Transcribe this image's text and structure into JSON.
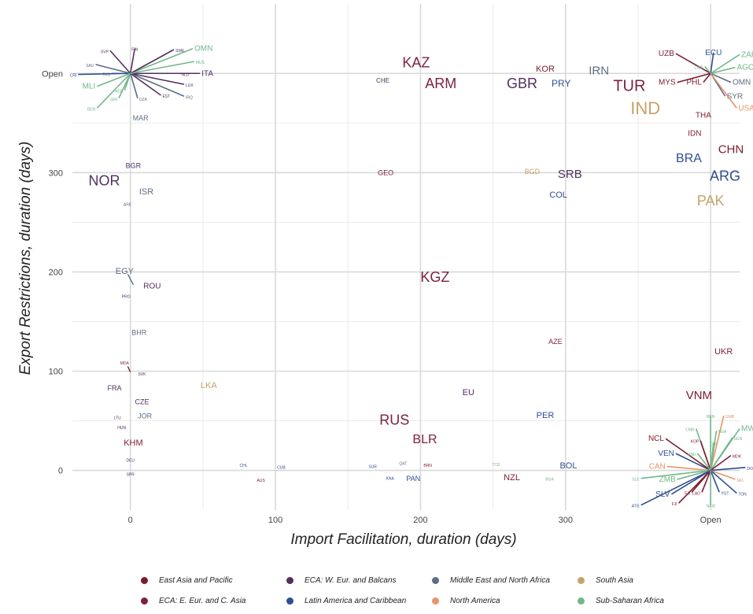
{
  "chart_data": {
    "type": "scatter",
    "xlabel": "Import Facilitation, duration (days)",
    "ylabel": "Export Restrictions, duration (days)",
    "x_ticks": [
      "0",
      "100",
      "200",
      "300",
      "Open"
    ],
    "y_ticks": [
      "0",
      "100",
      "200",
      "300",
      "Open"
    ],
    "xlim": [
      -40,
      420
    ],
    "ylim": [
      -40,
      470
    ],
    "open_value": 400,
    "colors": {
      "EAP": "#7b1c2c",
      "EEC": "#7e2141",
      "WEB": "#52305e",
      "LAC": "#2f4f8f",
      "MNA": "#5e6e85",
      "NAM": "#e5956a",
      "SAS": "#c6a36a",
      "SSA": "#72b88a"
    },
    "legend": [
      {
        "key": "EAP",
        "label": "East Asia and Pacific"
      },
      {
        "key": "WEB",
        "label": "ECA: W. Eur. and Balcans"
      },
      {
        "key": "MNA",
        "label": "Middle East and North Africa"
      },
      {
        "key": "SAS",
        "label": "South Asia"
      },
      {
        "key": "EEC",
        "label": "ECA: E. Eur. and C. Asia"
      },
      {
        "key": "LAC",
        "label": "Latin America and Caribbean"
      },
      {
        "key": "NAM",
        "label": "North America"
      },
      {
        "key": "SSA",
        "label": "Sub-Saharan Africa"
      }
    ],
    "points": [
      {
        "label": "KAZ",
        "x": 197,
        "y": 411,
        "region": "EEC",
        "size": 18
      },
      {
        "label": "ARM",
        "x": 214,
        "y": 390,
        "region": "EEC",
        "size": 18
      },
      {
        "label": "GBR",
        "x": 270,
        "y": 390,
        "region": "WEB",
        "size": 18
      },
      {
        "label": "KOR",
        "x": 286,
        "y": 405,
        "region": "EAP",
        "size": 11
      },
      {
        "label": "IRN",
        "x": 323,
        "y": 403,
        "region": "MNA",
        "size": 15
      },
      {
        "label": "PRY",
        "x": 297,
        "y": 390,
        "region": "LAC",
        "size": 12
      },
      {
        "label": "CHE",
        "x": 174,
        "y": 393,
        "region": "WEB",
        "size": 8
      },
      {
        "label": "MAR",
        "x": 7,
        "y": 355,
        "region": "MNA",
        "size": 9
      },
      {
        "label": "BGR",
        "x": 2,
        "y": 307,
        "region": "WEB",
        "size": 9
      },
      {
        "label": "NOR",
        "x": -18,
        "y": 292,
        "region": "WEB",
        "size": 18
      },
      {
        "label": "ISR",
        "x": 11,
        "y": 281,
        "region": "MNA",
        "size": 11
      },
      {
        "label": "GEO",
        "x": 176,
        "y": 300,
        "region": "EEC",
        "size": 9
      },
      {
        "label": "BGD",
        "x": 277,
        "y": 301,
        "region": "SAS",
        "size": 9
      },
      {
        "label": "SRB",
        "x": 303,
        "y": 299,
        "region": "WEB",
        "size": 15
      },
      {
        "label": "COL",
        "x": 295,
        "y": 278,
        "region": "LAC",
        "size": 11
      },
      {
        "label": "KGZ",
        "x": 210,
        "y": 195,
        "region": "EEC",
        "size": 18
      },
      {
        "label": "EGY",
        "x": -4,
        "y": 201,
        "region": "MNA",
        "size": 11
      },
      {
        "label": "ROU",
        "x": 15,
        "y": 186,
        "region": "WEB",
        "size": 10
      },
      {
        "label": "ARE",
        "x": -2,
        "y": 268,
        "region": "MNA",
        "size": 5
      },
      {
        "label": "PRO",
        "x": -3,
        "y": 175,
        "region": "WEB",
        "size": 5
      },
      {
        "label": "BHR",
        "x": 6,
        "y": 139,
        "region": "MNA",
        "size": 9
      },
      {
        "label": "AZE",
        "x": 293,
        "y": 130,
        "region": "EEC",
        "size": 9
      },
      {
        "label": "UKR",
        "x": 409,
        "y": 120,
        "region": "EEC",
        "size": 11
      },
      {
        "label": "MDA",
        "x": -4,
        "y": 108,
        "region": "EEC",
        "size": 5
      },
      {
        "label": "SVK",
        "x": 8,
        "y": 97,
        "region": "WEB",
        "size": 5
      },
      {
        "label": "LKA",
        "x": 54,
        "y": 86,
        "region": "SAS",
        "size": 11
      },
      {
        "label": "FRA",
        "x": -11,
        "y": 83,
        "region": "WEB",
        "size": 9
      },
      {
        "label": "EU",
        "x": 233,
        "y": 79,
        "region": "WEB",
        "size": 11
      },
      {
        "label": "CZE",
        "x": 8,
        "y": 69,
        "region": "WEB",
        "size": 9
      },
      {
        "label": "VNM",
        "x": 392,
        "y": 76,
        "region": "EAP",
        "size": 15
      },
      {
        "label": "LTU",
        "x": -9,
        "y": 53,
        "region": "WEB",
        "size": 5
      },
      {
        "label": "JOR",
        "x": 10,
        "y": 55,
        "region": "MNA",
        "size": 9
      },
      {
        "label": "PER",
        "x": 286,
        "y": 56,
        "region": "LAC",
        "size": 11
      },
      {
        "label": "RUS",
        "x": 182,
        "y": 51,
        "region": "EEC",
        "size": 18
      },
      {
        "label": "HUN",
        "x": -6,
        "y": 43,
        "region": "WEB",
        "size": 5
      },
      {
        "label": "BLR",
        "x": 203,
        "y": 32,
        "region": "EEC",
        "size": 16
      },
      {
        "label": "KHM",
        "x": 2,
        "y": 28,
        "region": "EAP",
        "size": 11
      },
      {
        "label": "DEU",
        "x": 0,
        "y": 10,
        "region": "WEB",
        "size": 5
      },
      {
        "label": "CHL",
        "x": 78,
        "y": 5,
        "region": "LAC",
        "size": 5
      },
      {
        "label": "CUB",
        "x": 104,
        "y": 3,
        "region": "LAC",
        "size": 5
      },
      {
        "label": "SUR",
        "x": 167,
        "y": 4,
        "region": "LAC",
        "size": 5
      },
      {
        "label": "QAT",
        "x": 188,
        "y": 7,
        "region": "MNA",
        "size": 5
      },
      {
        "label": "BRN",
        "x": 205,
        "y": 5,
        "region": "EAP",
        "size": 5
      },
      {
        "label": "TCD",
        "x": 252,
        "y": 6,
        "region": "SSA",
        "size": 5
      },
      {
        "label": "BOL",
        "x": 302,
        "y": 5,
        "region": "LAC",
        "size": 11
      },
      {
        "label": "SPR",
        "x": 0,
        "y": -4,
        "region": "WEB",
        "size": 5
      },
      {
        "label": "AUS",
        "x": 90,
        "y": -10,
        "region": "EAP",
        "size": 5
      },
      {
        "label": "KNA",
        "x": 179,
        "y": -8,
        "region": "LAC",
        "size": 5
      },
      {
        "label": "PAN",
        "x": 195,
        "y": -8,
        "region": "LAC",
        "size": 9
      },
      {
        "label": "NZL",
        "x": 263,
        "y": -7,
        "region": "EAP",
        "size": 11
      },
      {
        "label": "BGA",
        "x": 289,
        "y": -9,
        "region": "SSA",
        "size": 5
      },
      {
        "label": "TUR",
        "x": 344,
        "y": 388,
        "region": "EEC",
        "size": 20
      },
      {
        "label": "IND",
        "x": 355,
        "y": 365,
        "region": "SAS",
        "size": 22
      },
      {
        "label": "THA",
        "x": 395,
        "y": 358,
        "region": "EAP",
        "size": 10
      },
      {
        "label": "IDN",
        "x": 389,
        "y": 340,
        "region": "EAP",
        "size": 10
      },
      {
        "label": "BRA",
        "x": 385,
        "y": 315,
        "region": "LAC",
        "size": 16
      },
      {
        "label": "CHN",
        "x": 414,
        "y": 324,
        "region": "EAP",
        "size": 15
      },
      {
        "label": "ARG",
        "x": 410,
        "y": 297,
        "region": "LAC",
        "size": 18
      },
      {
        "label": "PAK",
        "x": 400,
        "y": 272,
        "region": "SAS",
        "size": 18
      }
    ],
    "open_clusters": [
      {
        "center": [
          0,
          400
        ],
        "spokes": [
          {
            "label": "ITA",
            "x": 48,
            "y": 400,
            "region": "WEB"
          },
          {
            "label": "OMN",
            "x": 43,
            "y": 425,
            "region": "SSA"
          },
          {
            "label": "SWE",
            "x": 30,
            "y": 424,
            "region": "WEB"
          },
          {
            "label": "FIN",
            "x": 3,
            "y": 425,
            "region": "WEB"
          },
          {
            "label": "SVP",
            "x": -14,
            "y": 423,
            "region": "WEB"
          },
          {
            "label": "SAU",
            "x": -24,
            "y": 409,
            "region": "MNA"
          },
          {
            "label": "TKS",
            "x": -13,
            "y": 400,
            "region": "MNA"
          },
          {
            "label": "CRI",
            "x": -36,
            "y": 399,
            "region": "LAC"
          },
          {
            "label": "MLI",
            "x": -23,
            "y": 387,
            "region": "SSA"
          },
          {
            "label": "NER",
            "x": -4,
            "y": 383,
            "region": "SSA"
          },
          {
            "label": "GIN",
            "x": -8,
            "y": 375,
            "region": "SSA"
          },
          {
            "label": "BEN",
            "x": -23,
            "y": 365,
            "region": "SSA"
          },
          {
            "label": "DZA",
            "x": 5,
            "y": 375,
            "region": "MNA"
          },
          {
            "label": "EST",
            "x": 21,
            "y": 378,
            "region": "WEB"
          },
          {
            "label": "IRQ",
            "x": 37,
            "y": 377,
            "region": "MNA"
          },
          {
            "label": "LUX",
            "x": 37,
            "y": 389,
            "region": "WEB"
          },
          {
            "label": "NLD",
            "x": 34,
            "y": 400,
            "region": "WEB"
          },
          {
            "label": "MUS",
            "x": 44,
            "y": 412,
            "region": "SSA"
          }
        ]
      },
      {
        "center": [
          400,
          400
        ],
        "spokes": [
          {
            "label": "UZB",
            "x": 376,
            "y": 420,
            "region": "EEC"
          },
          {
            "label": "ECU",
            "x": 402,
            "y": 421,
            "region": "LAC"
          },
          {
            "label": "ZAF",
            "x": 420,
            "y": 419,
            "region": "SSA"
          },
          {
            "label": "ZWE",
            "x": 396,
            "y": 407,
            "region": "SSA"
          },
          {
            "label": "AGO",
            "x": 417,
            "y": 406,
            "region": "SSA"
          },
          {
            "label": "MYS",
            "x": 377,
            "y": 391,
            "region": "EAP"
          },
          {
            "label": "PHL",
            "x": 395,
            "y": 391,
            "region": "EAP"
          },
          {
            "label": "OMN",
            "x": 414,
            "y": 391,
            "region": "MNA"
          },
          {
            "label": "SYR",
            "x": 410,
            "y": 377,
            "region": "MNA"
          },
          {
            "label": "USA",
            "x": 418,
            "y": 365,
            "region": "NAM"
          }
        ]
      },
      {
        "center": [
          400,
          0
        ],
        "spokes": [
          {
            "label": "BEN",
            "x": 400,
            "y": 55,
            "region": "SSA"
          },
          {
            "label": "GMB",
            "x": 409,
            "y": 55,
            "region": "NAM"
          },
          {
            "label": "MWI",
            "x": 420,
            "y": 42,
            "region": "SSA"
          },
          {
            "label": "CMR",
            "x": 390,
            "y": 42,
            "region": "SSA"
          },
          {
            "label": "NGA",
            "x": 404,
            "y": 40,
            "region": "SSA"
          },
          {
            "label": "SEN",
            "x": 415,
            "y": 33,
            "region": "SSA"
          },
          {
            "label": "NCL",
            "x": 369,
            "y": 32,
            "region": "EAP"
          },
          {
            "label": "KOP",
            "x": 393,
            "y": 30,
            "region": "EAP"
          },
          {
            "label": "CIV",
            "x": 402,
            "y": 28,
            "region": "SSA"
          },
          {
            "label": "VEN",
            "x": 376,
            "y": 17,
            "region": "LAC"
          },
          {
            "label": "MNE",
            "x": 391,
            "y": 17,
            "region": "SSA"
          },
          {
            "label": "MDK",
            "x": 414,
            "y": 15,
            "region": "EEC"
          },
          {
            "label": "CAN",
            "x": 370,
            "y": 4,
            "region": "NAM"
          },
          {
            "label": "DOM",
            "x": 424,
            "y": 3,
            "region": "LAC"
          },
          {
            "label": "SLE",
            "x": 352,
            "y": -8,
            "region": "SSA"
          },
          {
            "label": "ZMB",
            "x": 377,
            "y": -9,
            "region": "SSA"
          },
          {
            "label": "NFL",
            "x": 417,
            "y": -9,
            "region": "NAM"
          },
          {
            "label": "SLV",
            "x": 373,
            "y": -24,
            "region": "LAC"
          },
          {
            "label": "FJI",
            "x": 387,
            "y": -22,
            "region": "EAP"
          },
          {
            "label": "LAO",
            "x": 394,
            "y": -22,
            "region": "EAP"
          },
          {
            "label": "YGT",
            "x": 406,
            "y": -22,
            "region": "LAC"
          },
          {
            "label": "TON",
            "x": 418,
            "y": -23,
            "region": "LAC"
          },
          {
            "label": "FJI",
            "x": 378,
            "y": -33,
            "region": "EAP"
          },
          {
            "label": "ATG",
            "x": 352,
            "y": -35,
            "region": "LAC"
          },
          {
            "label": "NAM",
            "x": 400,
            "y": -35,
            "region": "SSA"
          }
        ]
      }
    ]
  }
}
